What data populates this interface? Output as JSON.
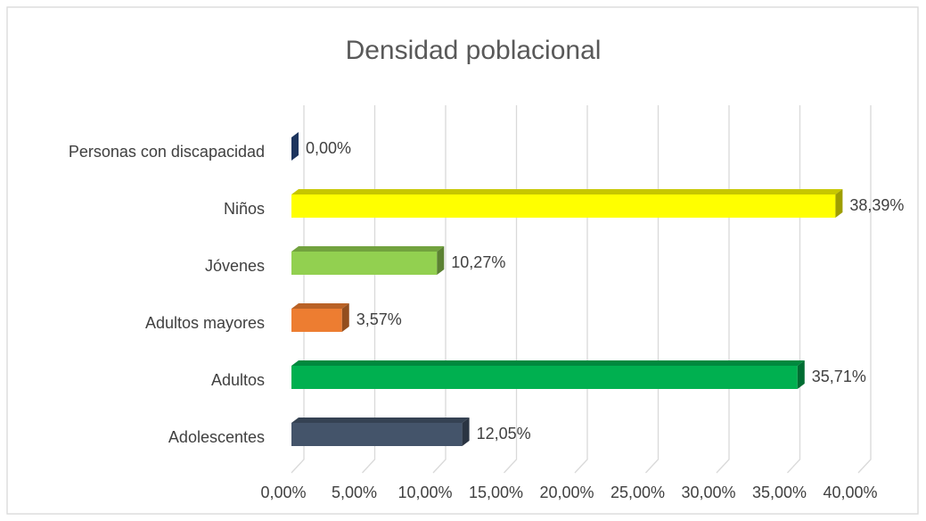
{
  "chart_data": {
    "type": "bar3d",
    "title": "Densidad poblacional",
    "categories": [
      "Personas con discapacidad",
      "Niños",
      "Jóvenes",
      "Adultos mayores",
      "Adultos",
      "Adolescentes"
    ],
    "values": [
      0,
      38.39,
      10.27,
      3.57,
      35.71,
      12.05
    ],
    "value_labels": [
      "0,00%",
      "38,39%",
      "10,27%",
      "3,57%",
      "35,71%",
      "12,05%"
    ],
    "colors": [
      "#2f5597",
      "#ffff00",
      "#92d050",
      "#ed7d31",
      "#00b050",
      "#44546a"
    ],
    "xlim": [
      0,
      40
    ],
    "xticks": [
      {
        "value": 0,
        "label": "0,00%"
      },
      {
        "value": 5,
        "label": "5,00%"
      },
      {
        "value": 10,
        "label": "10,00%"
      },
      {
        "value": 15,
        "label": "15,00%"
      },
      {
        "value": 20,
        "label": "20,00%"
      },
      {
        "value": 25,
        "label": "25,00%"
      },
      {
        "value": 30,
        "label": "30,00%"
      },
      {
        "value": 35,
        "label": "35,00%"
      },
      {
        "value": 40,
        "label": "40,00%"
      }
    ],
    "grid": true
  }
}
